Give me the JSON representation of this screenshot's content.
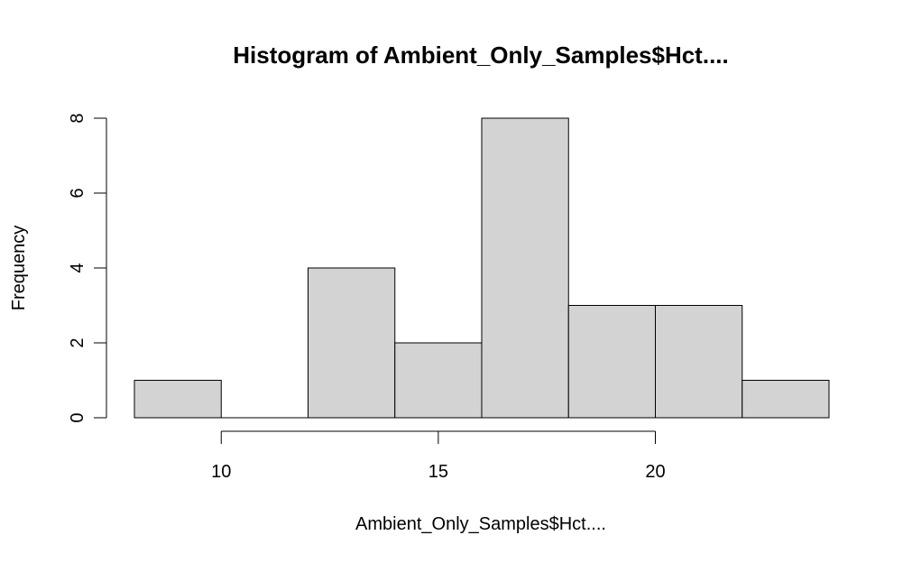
{
  "chart_data": {
    "type": "bar",
    "title": "Histogram of Ambient_Only_Samples$Hct....",
    "xlabel": "Ambient_Only_Samples$Hct....",
    "ylabel": "Frequency",
    "bins": [
      {
        "start": 8,
        "end": 10,
        "count": 1
      },
      {
        "start": 10,
        "end": 12,
        "count": 0
      },
      {
        "start": 12,
        "end": 14,
        "count": 4
      },
      {
        "start": 14,
        "end": 16,
        "count": 2
      },
      {
        "start": 16,
        "end": 18,
        "count": 8
      },
      {
        "start": 18,
        "end": 20,
        "count": 3
      },
      {
        "start": 20,
        "end": 22,
        "count": 3
      },
      {
        "start": 22,
        "end": 24,
        "count": 1
      }
    ],
    "xlim": [
      8,
      24
    ],
    "ylim": [
      0,
      8
    ],
    "x_ticks": [
      10,
      15,
      20
    ],
    "y_ticks": [
      0,
      2,
      4,
      6,
      8
    ],
    "bar_color": "#d3d3d3",
    "grid": false
  }
}
